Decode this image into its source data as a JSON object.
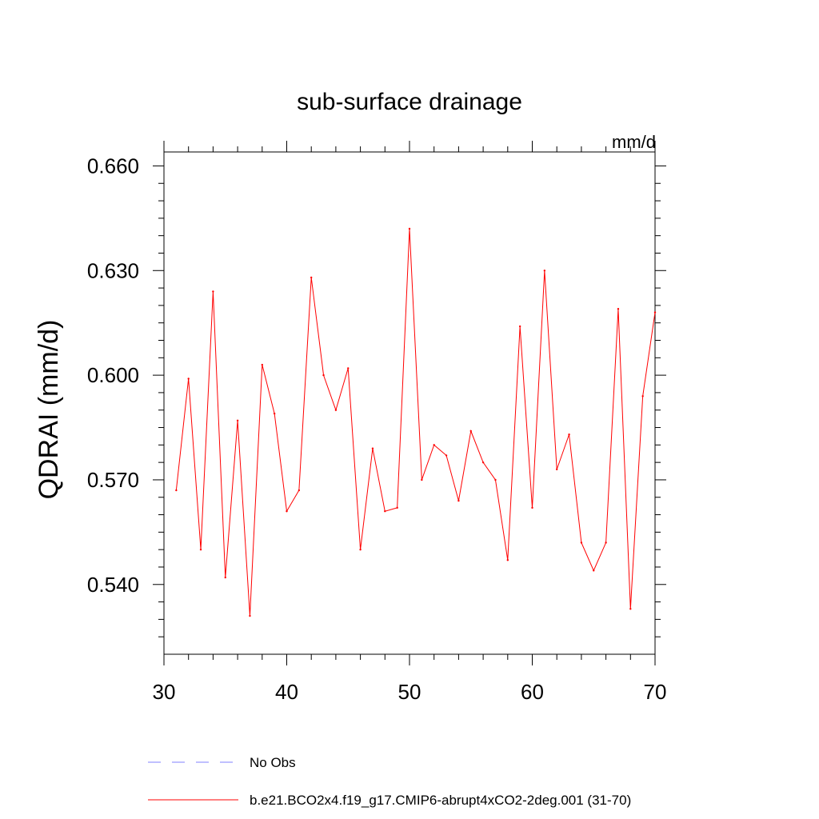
{
  "chart_data": {
    "type": "line",
    "title": "sub-surface drainage",
    "units": "mm/d",
    "ylabel": "QDRAI  (mm/d)",
    "xlabel": "",
    "xlim": [
      30,
      70
    ],
    "ylim": [
      0.52,
      0.664
    ],
    "xticks": [
      30,
      40,
      50,
      60,
      70
    ],
    "xtick_labels": [
      "30",
      "40",
      "50",
      "60",
      "70"
    ],
    "yticks": [
      0.54,
      0.57,
      0.6,
      0.63,
      0.66
    ],
    "ytick_labels": [
      "0.540",
      "0.570",
      "0.600",
      "0.630",
      "0.660"
    ],
    "grid": false,
    "legend_position": "bottom",
    "series": [
      {
        "name": "No Obs",
        "color": "#8080ff",
        "dash": "dashed",
        "x": [],
        "y": []
      },
      {
        "name": "b.e21.BCO2x4.f19_g17.CMIP6-abrupt4xCO2-2deg.001 (31-70)",
        "color": "#ff0000",
        "dash": "solid",
        "x": [
          31,
          32,
          33,
          34,
          35,
          36,
          37,
          38,
          39,
          40,
          41,
          42,
          43,
          44,
          45,
          46,
          47,
          48,
          49,
          50,
          51,
          52,
          53,
          54,
          55,
          56,
          57,
          58,
          59,
          60,
          61,
          62,
          63,
          64,
          65,
          66,
          67,
          68,
          69,
          70
        ],
        "y": [
          0.567,
          0.599,
          0.55,
          0.624,
          0.542,
          0.587,
          0.531,
          0.603,
          0.589,
          0.561,
          0.567,
          0.628,
          0.6,
          0.59,
          0.602,
          0.55,
          0.579,
          0.561,
          0.562,
          0.642,
          0.57,
          0.58,
          0.577,
          0.564,
          0.584,
          0.575,
          0.57,
          0.547,
          0.614,
          0.562,
          0.63,
          0.573,
          0.583,
          0.552,
          0.544,
          0.552,
          0.619,
          0.533,
          0.594,
          0.618
        ]
      }
    ]
  }
}
